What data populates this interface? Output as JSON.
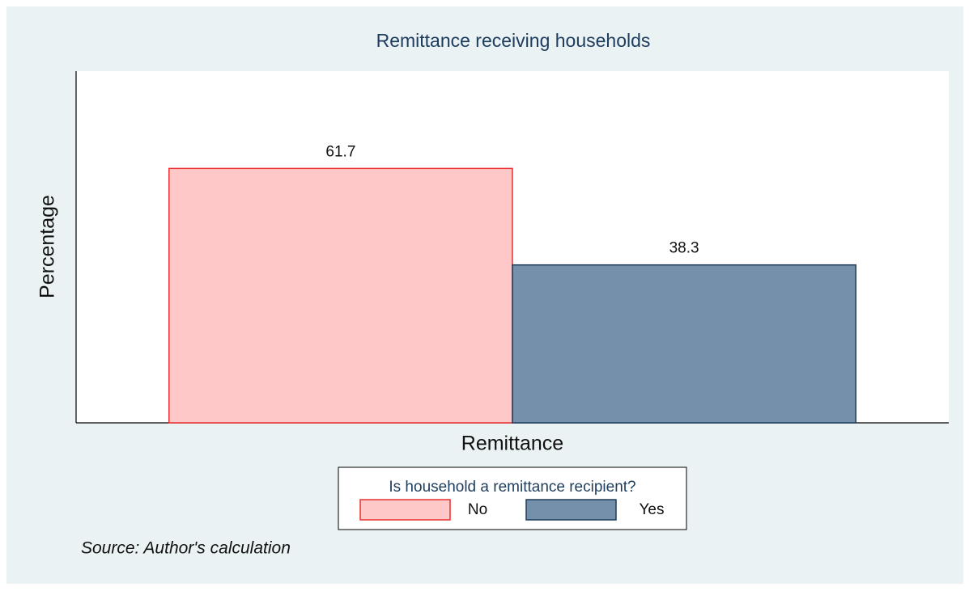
{
  "chart_data": {
    "type": "bar",
    "title": "Remittance receiving households",
    "ylabel": "Percentage",
    "xlabel": "Remittance",
    "categories": [
      null
    ],
    "series": [
      {
        "name": "No",
        "color": "#ffc8c8",
        "edgecolor": "#e8302f",
        "values": [
          61.7
        ]
      },
      {
        "name": "Yes",
        "color": "#7590aa",
        "edgecolor": "#1d3c5e",
        "values": [
          38.3
        ]
      }
    ],
    "ylim": [
      0,
      85.3
    ],
    "legend": {
      "title": "Is household a remittance recipient?",
      "loc": "bottom"
    },
    "note": "Source: Author's calculation"
  }
}
